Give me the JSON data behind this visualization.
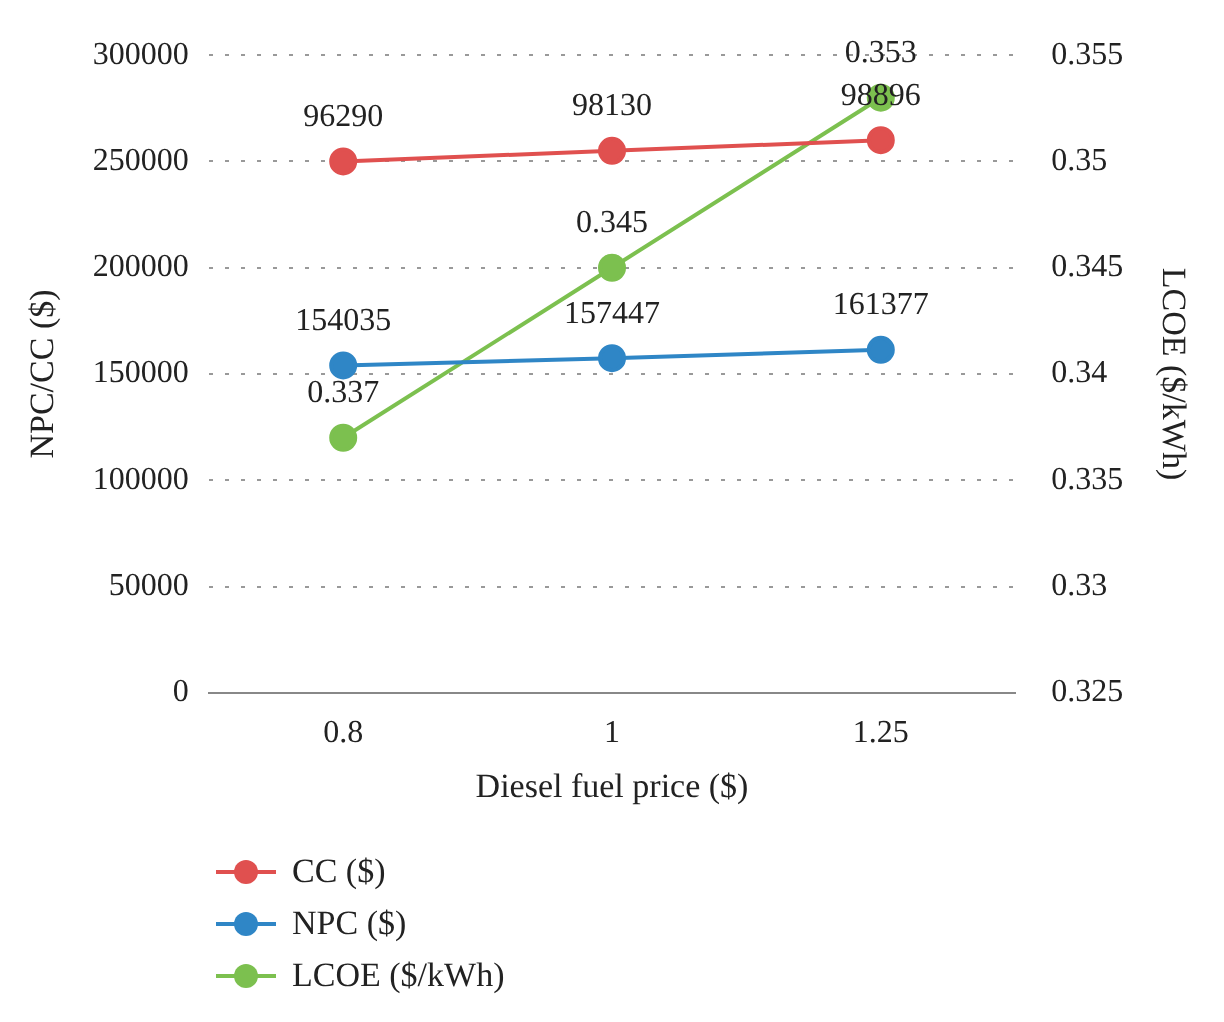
{
  "chart_data": {
    "type": "line",
    "xlabel": "Diesel fuel price ($)",
    "ylabel": "NPC/CC ($)",
    "y2label": "LCOE ($/kWh)",
    "categories": [
      "0.8",
      "1",
      "1.25"
    ],
    "series": [
      {
        "name": "CC ($)",
        "color": "#e0504f",
        "values": [
          250000,
          255000,
          260000
        ]
      },
      {
        "name": "NPC ($)",
        "color": "#2f86c6",
        "values": [
          154035,
          157447,
          161377
        ],
        "value_labels": [
          "154035",
          "157447",
          "161377"
        ]
      },
      {
        "name": "LCOE ($/kWh)",
        "color": "#7cc04f",
        "axis": "y2",
        "values": [
          0.337,
          0.345,
          0.353
        ],
        "value_labels": [
          "0.337",
          "0.345",
          "0.353"
        ]
      }
    ],
    "ylim": [
      0,
      300000
    ],
    "yticks": [
      0,
      50000,
      100000,
      150000,
      200000,
      250000,
      300000
    ],
    "y2lim": [
      0.325,
      0.355
    ],
    "y2ticks": [
      0.325,
      0.33,
      0.335,
      0.34,
      0.345,
      0.35,
      0.355
    ],
    "annotations": [
      {
        "text": "96290",
        "x": "0.8",
        "y": 250000
      },
      {
        "text": "98130",
        "x": "1",
        "y": 255000
      },
      {
        "text": "98896",
        "x": "1.25",
        "y": 260000
      }
    ],
    "grid": "y",
    "legend": "bottom",
    "marker": "circle",
    "line_style": "solid"
  }
}
